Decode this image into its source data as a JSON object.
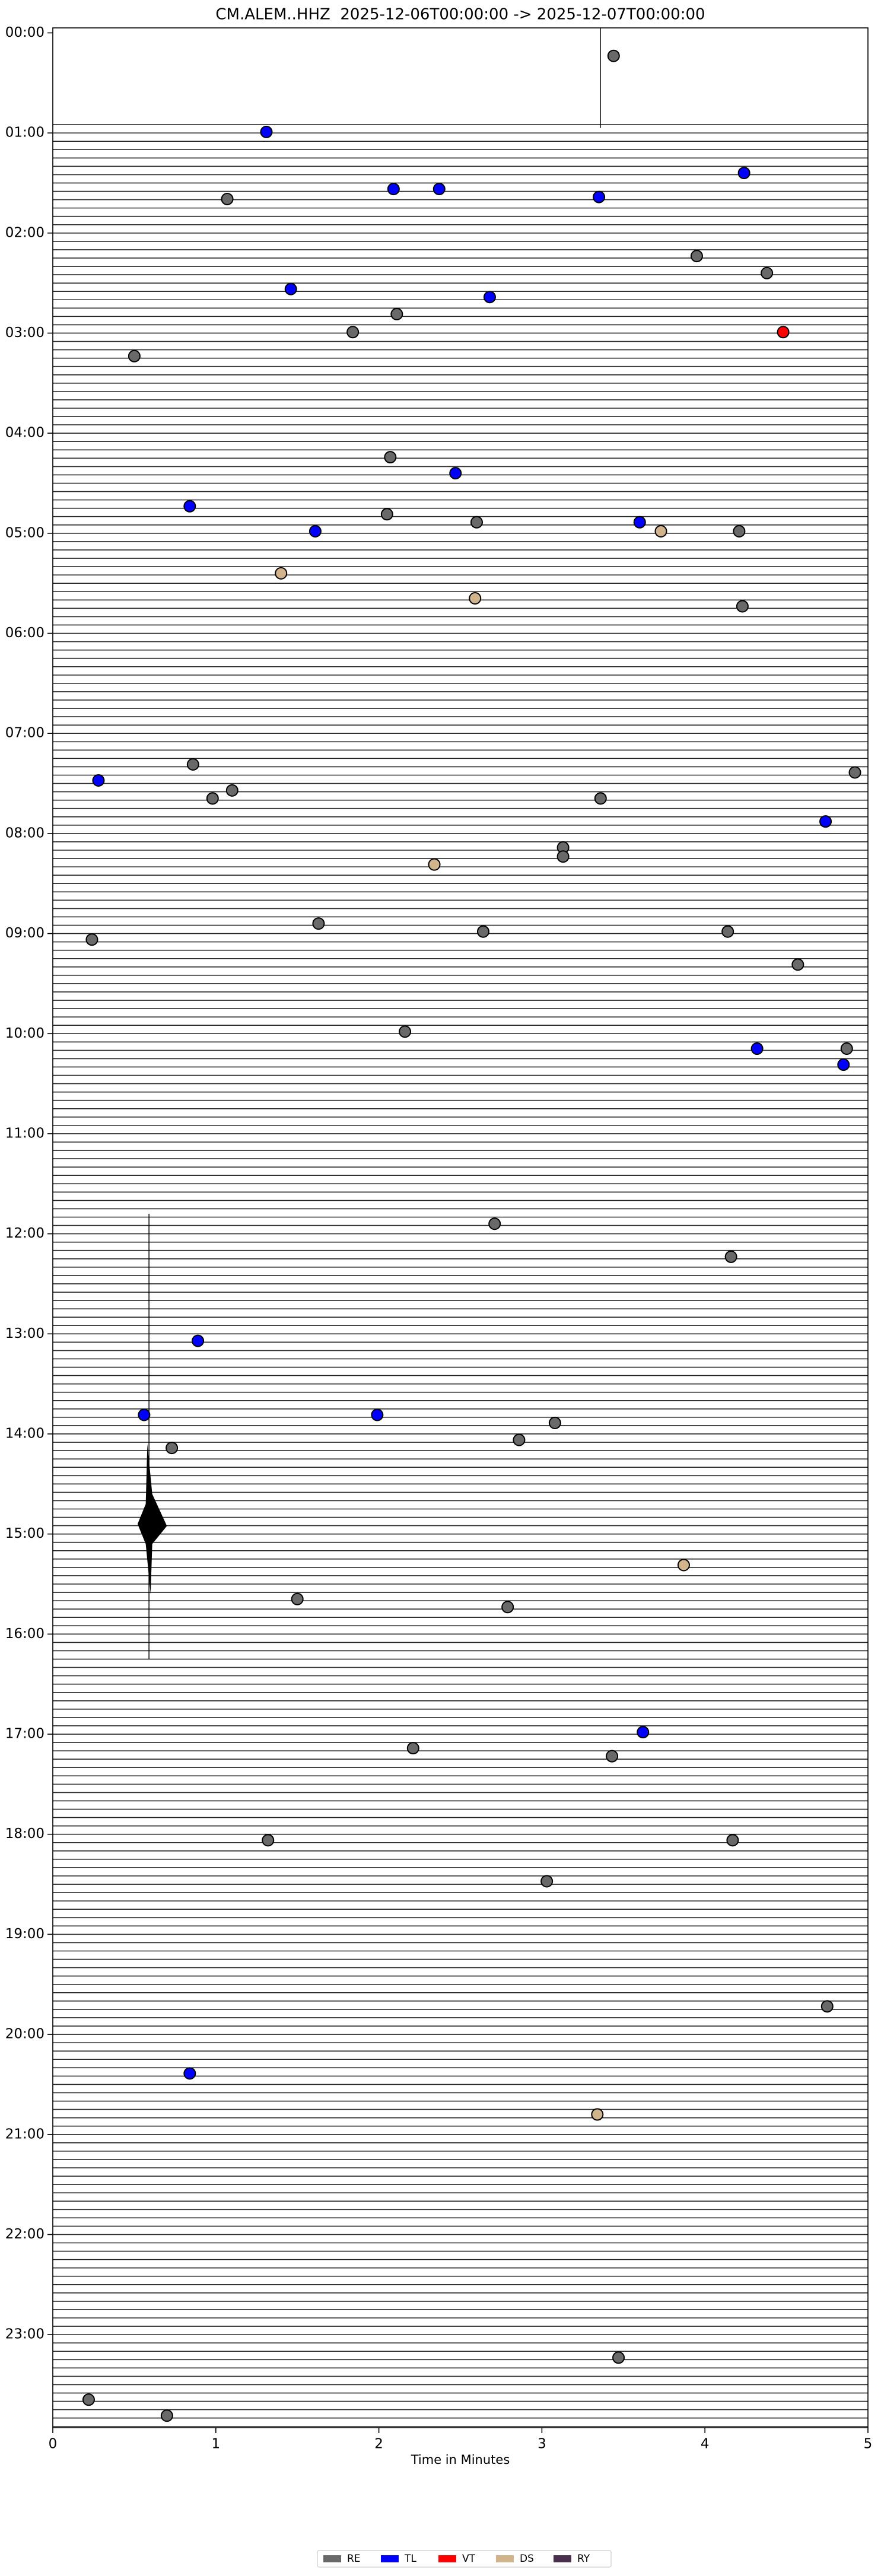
{
  "chart_data": {
    "type": "scatter",
    "title": "CM.ALEM..HHZ  2025-12-06T00:00:00 -> 2025-12-07T00:00:00",
    "xlabel": "Time in Minutes",
    "xlim": [
      0,
      5
    ],
    "xticks": [
      0,
      1,
      2,
      3,
      4,
      5
    ],
    "ylim": [
      23.93,
      -0.05
    ],
    "yticks": [
      {
        "value": 0,
        "label": "00:00"
      },
      {
        "value": 1,
        "label": "01:00"
      },
      {
        "value": 2,
        "label": "02:00"
      },
      {
        "value": 3,
        "label": "03:00"
      },
      {
        "value": 4,
        "label": "04:00"
      },
      {
        "value": 5,
        "label": "05:00"
      },
      {
        "value": 6,
        "label": "06:00"
      },
      {
        "value": 7,
        "label": "07:00"
      },
      {
        "value": 8,
        "label": "08:00"
      },
      {
        "value": 9,
        "label": "09:00"
      },
      {
        "value": 10,
        "label": "10:00"
      },
      {
        "value": 11,
        "label": "11:00"
      },
      {
        "value": 12,
        "label": "12:00"
      },
      {
        "value": 13,
        "label": "13:00"
      },
      {
        "value": 14,
        "label": "14:00"
      },
      {
        "value": 15,
        "label": "15:00"
      },
      {
        "value": 16,
        "label": "16:00"
      },
      {
        "value": 17,
        "label": "17:00"
      },
      {
        "value": 18,
        "label": "18:00"
      },
      {
        "value": 19,
        "label": "19:00"
      },
      {
        "value": 20,
        "label": "20:00"
      },
      {
        "value": 21,
        "label": "21:00"
      },
      {
        "value": 22,
        "label": "22:00"
      },
      {
        "value": 23,
        "label": "23:00"
      }
    ],
    "legend": "bottom",
    "series": [
      {
        "name": "RE",
        "color": "#696969",
        "x": [
          3.44,
          1.07,
          3.95,
          4.38,
          2.11,
          1.84,
          0.5,
          2.07,
          2.05,
          2.6,
          4.21,
          4.23,
          0.86,
          4.92,
          1.1,
          0.98,
          3.36,
          3.13,
          3.13,
          1.63,
          2.64,
          0.24,
          4.14,
          4.57,
          2.16,
          4.87,
          2.71,
          4.16,
          3.08,
          0.73,
          2.86,
          1.5,
          2.79,
          2.21,
          3.43,
          1.32,
          4.17,
          3.03,
          4.75,
          3.47,
          0.22,
          0.7
        ],
        "values": [
          0.23,
          1.66,
          2.23,
          2.4,
          2.81,
          2.99,
          3.23,
          4.24,
          4.81,
          4.89,
          4.98,
          5.73,
          7.31,
          7.39,
          7.57,
          7.65,
          7.65,
          8.14,
          8.23,
          8.9,
          8.98,
          9.06,
          8.98,
          9.31,
          9.98,
          10.15,
          11.9,
          12.23,
          13.89,
          14.14,
          14.06,
          15.65,
          15.73,
          17.14,
          17.22,
          18.06,
          18.06,
          18.47,
          19.72,
          23.23,
          23.65,
          23.81
        ]
      },
      {
        "name": "TL",
        "color": "#0000ff",
        "x": [
          1.31,
          4.24,
          2.09,
          2.37,
          3.35,
          1.46,
          2.68,
          2.47,
          0.84,
          1.61,
          3.6,
          0.28,
          4.74,
          4.32,
          4.85,
          0.89,
          0.56,
          1.99,
          3.62,
          0.84
        ],
        "values": [
          0.99,
          1.4,
          1.56,
          1.56,
          1.64,
          2.56,
          2.64,
          4.4,
          4.73,
          4.98,
          4.89,
          7.47,
          7.88,
          10.15,
          10.31,
          13.07,
          13.81,
          13.81,
          16.98,
          20.39
        ]
      },
      {
        "name": "VT",
        "color": "#ff0000",
        "x": [
          4.48
        ],
        "values": [
          2.99
        ]
      },
      {
        "name": "DS",
        "color": "#d2b48c",
        "x": [
          3.73,
          1.4,
          2.59,
          2.34,
          3.87,
          3.34
        ],
        "values": [
          4.98,
          5.4,
          5.65,
          8.31,
          15.31,
          20.8
        ]
      },
      {
        "name": "RY",
        "color": "#48304d",
        "x": [],
        "values": []
      }
    ]
  }
}
